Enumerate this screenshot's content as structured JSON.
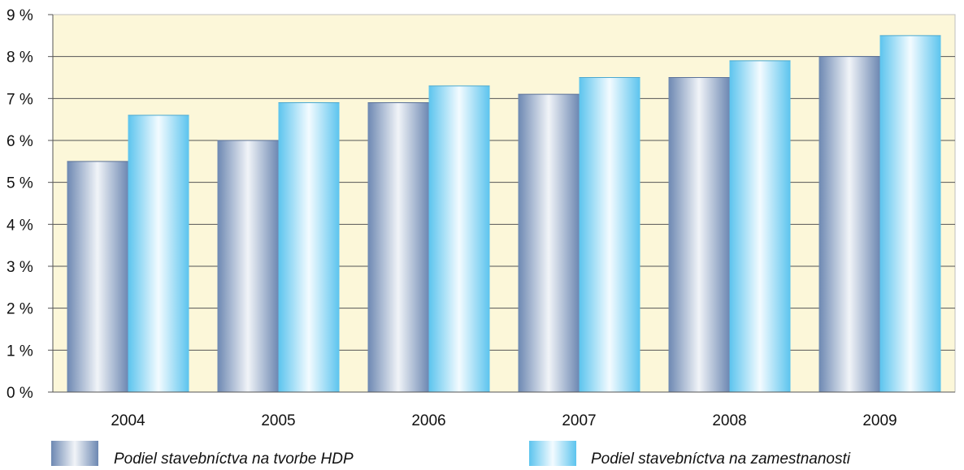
{
  "chart_data": {
    "type": "bar",
    "categories": [
      "2004",
      "2005",
      "2006",
      "2007",
      "2008",
      "2009"
    ],
    "series": [
      {
        "name": "Podiel stavebníctva na tvorbe HDP",
        "values": [
          5.5,
          6.0,
          6.9,
          7.1,
          7.5,
          8.0
        ]
      },
      {
        "name": "Podiel stavebníctva na zamestnanosti",
        "values": [
          6.6,
          6.9,
          7.3,
          7.5,
          7.9,
          8.5
        ]
      }
    ],
    "ylim": [
      0,
      9
    ],
    "yticks": [
      {
        "value": 0,
        "label": "0 %"
      },
      {
        "value": 1,
        "label": "1 %"
      },
      {
        "value": 2,
        "label": "2 %"
      },
      {
        "value": 3,
        "label": "3 %"
      },
      {
        "value": 4,
        "label": "4 %"
      },
      {
        "value": 5,
        "label": "5 %"
      },
      {
        "value": 6,
        "label": "6 %"
      },
      {
        "value": 7,
        "label": "7 %"
      },
      {
        "value": 8,
        "label": "8 %"
      },
      {
        "value": 9,
        "label": "9 %"
      }
    ],
    "grid": true,
    "legend_position": "bottom",
    "colors": {
      "plot_background": "#fcf7d9",
      "series_1": "#7f98bd",
      "series_2": "#66ccf2"
    }
  }
}
